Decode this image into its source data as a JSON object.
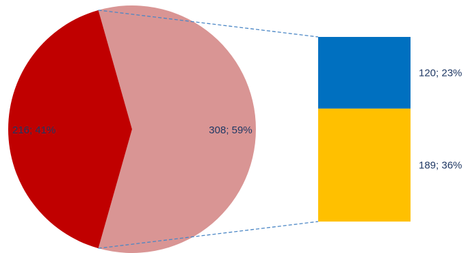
{
  "chart_data": {
    "type": "pie",
    "subtype": "bar-of-pie",
    "title": "",
    "legend": "none",
    "pie": {
      "slices": [
        {
          "value": 216,
          "percent": 41,
          "label": "216; 41%",
          "color": "#C00000"
        },
        {
          "value": 308,
          "percent": 59,
          "label": "308; 59%",
          "color": "#D99594",
          "expanded": true
        }
      ]
    },
    "bar": {
      "segments": [
        {
          "value": 120,
          "percent": 23,
          "label": "120; 23%",
          "color": "#0070C0"
        },
        {
          "value": 189,
          "percent": 36,
          "label": "189; 36%",
          "color": "#FFC000"
        }
      ]
    },
    "colors": {
      "label_text": "#1F3864",
      "connector": "#4A86C5"
    }
  }
}
